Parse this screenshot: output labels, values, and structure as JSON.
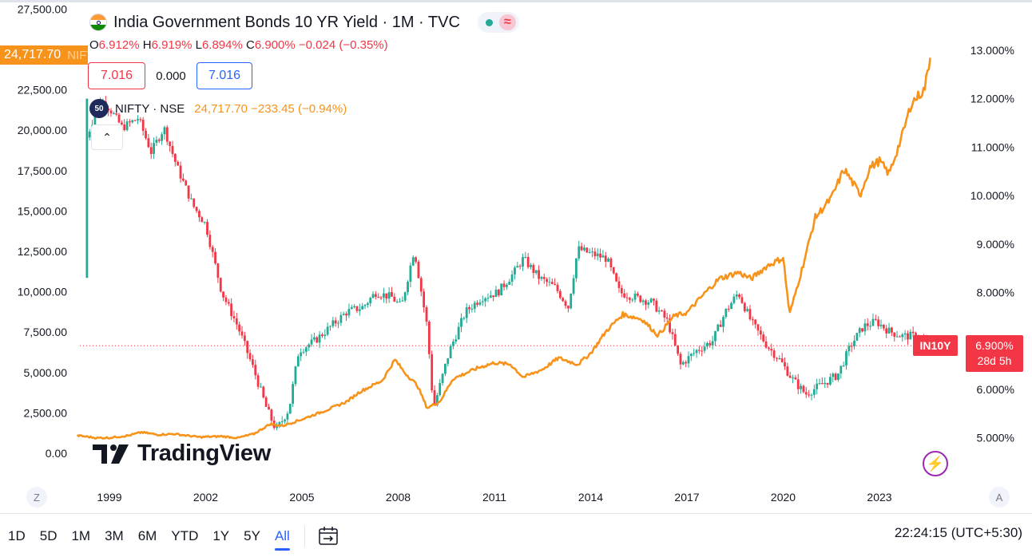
{
  "header": {
    "title": "India Government Bonds 10 YR Yield · 1M · TVC",
    "flag_icon": "india-flag-icon",
    "pill_icons": [
      "market-open-dot-icon",
      "wave-icon"
    ]
  },
  "ohlc": {
    "o_label": "O",
    "o_value": "6.912%",
    "h_label": "H",
    "h_value": "6.919%",
    "l_label": "L",
    "l_value": "6.894%",
    "c_label": "C",
    "c_value": "6.900%",
    "change": "−0.024 (−0.35%)"
  },
  "price_boxes": {
    "sell": "7.016",
    "spread": "0.000",
    "buy": "7.016"
  },
  "nifty": {
    "badge": "50",
    "name": "NIFTY · NSE",
    "values": "24,717.70 −233.45 (−0.94%)",
    "last_tag": "24,717.70",
    "ghost_tag": "NIFTY"
  },
  "collapse_glyph": "⌃",
  "yield_tags": {
    "symbol": "IN10Y",
    "last": "6.900%",
    "countdown": "28d 5h"
  },
  "watermark": {
    "logo_glyph": "17",
    "text": "TradingView"
  },
  "corners": {
    "left": "Z",
    "right": "A"
  },
  "toolbar": {
    "ranges": [
      "1D",
      "5D",
      "1M",
      "3M",
      "6M",
      "YTD",
      "1Y",
      "5Y",
      "All"
    ],
    "active": "All",
    "compare_icon": "date-range-icon"
  },
  "clock": "22:24:15 (UTC+5:30)",
  "colors": {
    "nifty_line": "#f7931a",
    "candle_up": "#22ab94",
    "candle_down": "#f23645",
    "accent": "#2962ff"
  },
  "chart_data": {
    "type": "line",
    "title": "India Government Bonds 10 YR Yield · 1M · TVC",
    "x_tick_labels": [
      "1999",
      "2002",
      "2005",
      "2008",
      "2011",
      "2014",
      "2017",
      "2020",
      "2023"
    ],
    "left_axis": {
      "ticks": [
        "27,500.00",
        "25,000.00",
        "22,500.00",
        "20,000.00",
        "17,500.00",
        "15,000.00",
        "12,500.00",
        "10,000.00",
        "7,500.00",
        "5,000.00",
        "2,500.00",
        "0.00"
      ],
      "range": [
        0,
        27500
      ]
    },
    "right_axis": {
      "ticks": [
        "13.000%",
        "12.000%",
        "11.000%",
        "10.000%",
        "9.000%",
        "8.000%",
        "7.000%",
        "6.000%",
        "5.000%"
      ],
      "range": [
        4.75,
        13.1
      ]
    },
    "grid": false,
    "legend_position": "top-left",
    "series": [
      {
        "name": "NIFTY · NSE",
        "kind": "line",
        "points": [
          [
            1998.0,
            1100
          ],
          [
            1998.6,
            950
          ],
          [
            1999.0,
            960
          ],
          [
            1999.6,
            1100
          ],
          [
            2000.0,
            1300
          ],
          [
            2000.5,
            1150
          ],
          [
            2001.0,
            1200
          ],
          [
            2001.8,
            1000
          ],
          [
            2002.5,
            1050
          ],
          [
            2003.0,
            950
          ],
          [
            2003.5,
            1200
          ],
          [
            2004.0,
            1800
          ],
          [
            2004.4,
            1700
          ],
          [
            2005.0,
            2100
          ],
          [
            2005.8,
            2700
          ],
          [
            2006.4,
            3200
          ],
          [
            2006.8,
            3800
          ],
          [
            2007.5,
            4500
          ],
          [
            2007.9,
            5800
          ],
          [
            2008.2,
            5000
          ],
          [
            2008.6,
            4200
          ],
          [
            2008.9,
            2800
          ],
          [
            2009.3,
            3200
          ],
          [
            2009.7,
            4600
          ],
          [
            2010.5,
            5300
          ],
          [
            2011.0,
            5600
          ],
          [
            2011.5,
            5500
          ],
          [
            2011.9,
            4700
          ],
          [
            2012.5,
            5200
          ],
          [
            2013.0,
            5900
          ],
          [
            2013.6,
            5500
          ],
          [
            2014.0,
            6200
          ],
          [
            2014.5,
            7600
          ],
          [
            2015.0,
            8600
          ],
          [
            2015.6,
            8300
          ],
          [
            2016.1,
            7300
          ],
          [
            2016.6,
            8500
          ],
          [
            2017.0,
            8700
          ],
          [
            2017.6,
            10000
          ],
          [
            2018.0,
            10800
          ],
          [
            2018.6,
            11200
          ],
          [
            2019.0,
            10800
          ],
          [
            2019.5,
            11600
          ],
          [
            2020.0,
            12100
          ],
          [
            2020.2,
            8600
          ],
          [
            2020.6,
            11500
          ],
          [
            2021.0,
            14600
          ],
          [
            2021.5,
            15800
          ],
          [
            2021.9,
            17600
          ],
          [
            2022.4,
            16000
          ],
          [
            2022.7,
            17700
          ],
          [
            2023.0,
            18100
          ],
          [
            2023.3,
            17300
          ],
          [
            2023.7,
            19600
          ],
          [
            2024.0,
            21700
          ],
          [
            2024.4,
            22500
          ],
          [
            2024.6,
            24700
          ]
        ]
      },
      {
        "name": "IN10Y",
        "kind": "candlestick-close",
        "points": [
          [
            1998.3,
            11.2
          ],
          [
            1998.7,
            12.0
          ],
          [
            1999.0,
            11.8
          ],
          [
            1999.4,
            11.4
          ],
          [
            1999.9,
            11.6
          ],
          [
            2000.3,
            10.9
          ],
          [
            2000.7,
            11.4
          ],
          [
            2001.1,
            10.6
          ],
          [
            2001.6,
            9.8
          ],
          [
            2002.0,
            9.4
          ],
          [
            2002.5,
            8.0
          ],
          [
            2003.0,
            7.3
          ],
          [
            2003.5,
            6.4
          ],
          [
            2003.9,
            5.6
          ],
          [
            2004.2,
            5.15
          ],
          [
            2004.6,
            5.6
          ],
          [
            2004.9,
            6.8
          ],
          [
            2005.4,
            7.0
          ],
          [
            2005.9,
            7.3
          ],
          [
            2006.4,
            7.6
          ],
          [
            2006.9,
            7.7
          ],
          [
            2007.3,
            8.0
          ],
          [
            2007.8,
            7.9
          ],
          [
            2008.1,
            7.7
          ],
          [
            2008.5,
            8.9
          ],
          [
            2008.9,
            7.3
          ],
          [
            2009.1,
            5.6
          ],
          [
            2009.6,
            6.8
          ],
          [
            2010.1,
            7.6
          ],
          [
            2010.6,
            7.9
          ],
          [
            2011.1,
            8.0
          ],
          [
            2011.6,
            8.4
          ],
          [
            2011.9,
            8.7
          ],
          [
            2012.4,
            8.3
          ],
          [
            2012.9,
            8.1
          ],
          [
            2013.3,
            7.7
          ],
          [
            2013.6,
            8.9
          ],
          [
            2014.0,
            8.8
          ],
          [
            2014.5,
            8.7
          ],
          [
            2014.9,
            8.0
          ],
          [
            2015.4,
            7.9
          ],
          [
            2015.9,
            7.8
          ],
          [
            2016.4,
            7.4
          ],
          [
            2016.8,
            6.5
          ],
          [
            2017.3,
            6.8
          ],
          [
            2017.8,
            7.0
          ],
          [
            2018.2,
            7.6
          ],
          [
            2018.6,
            8.0
          ],
          [
            2019.0,
            7.4
          ],
          [
            2019.5,
            6.9
          ],
          [
            2019.9,
            6.6
          ],
          [
            2020.3,
            6.2
          ],
          [
            2020.7,
            5.9
          ],
          [
            2021.2,
            6.1
          ],
          [
            2021.7,
            6.3
          ],
          [
            2022.1,
            6.9
          ],
          [
            2022.5,
            7.3
          ],
          [
            2022.9,
            7.4
          ],
          [
            2023.3,
            7.2
          ],
          [
            2023.7,
            7.1
          ],
          [
            2024.1,
            7.1
          ],
          [
            2024.4,
            7.0
          ],
          [
            2024.6,
            6.9
          ]
        ]
      }
    ],
    "annotations": [
      "7.016",
      "0.000",
      "7.016",
      "IN10Y",
      "6.900%",
      "28d 5h",
      "24,717.70"
    ]
  }
}
